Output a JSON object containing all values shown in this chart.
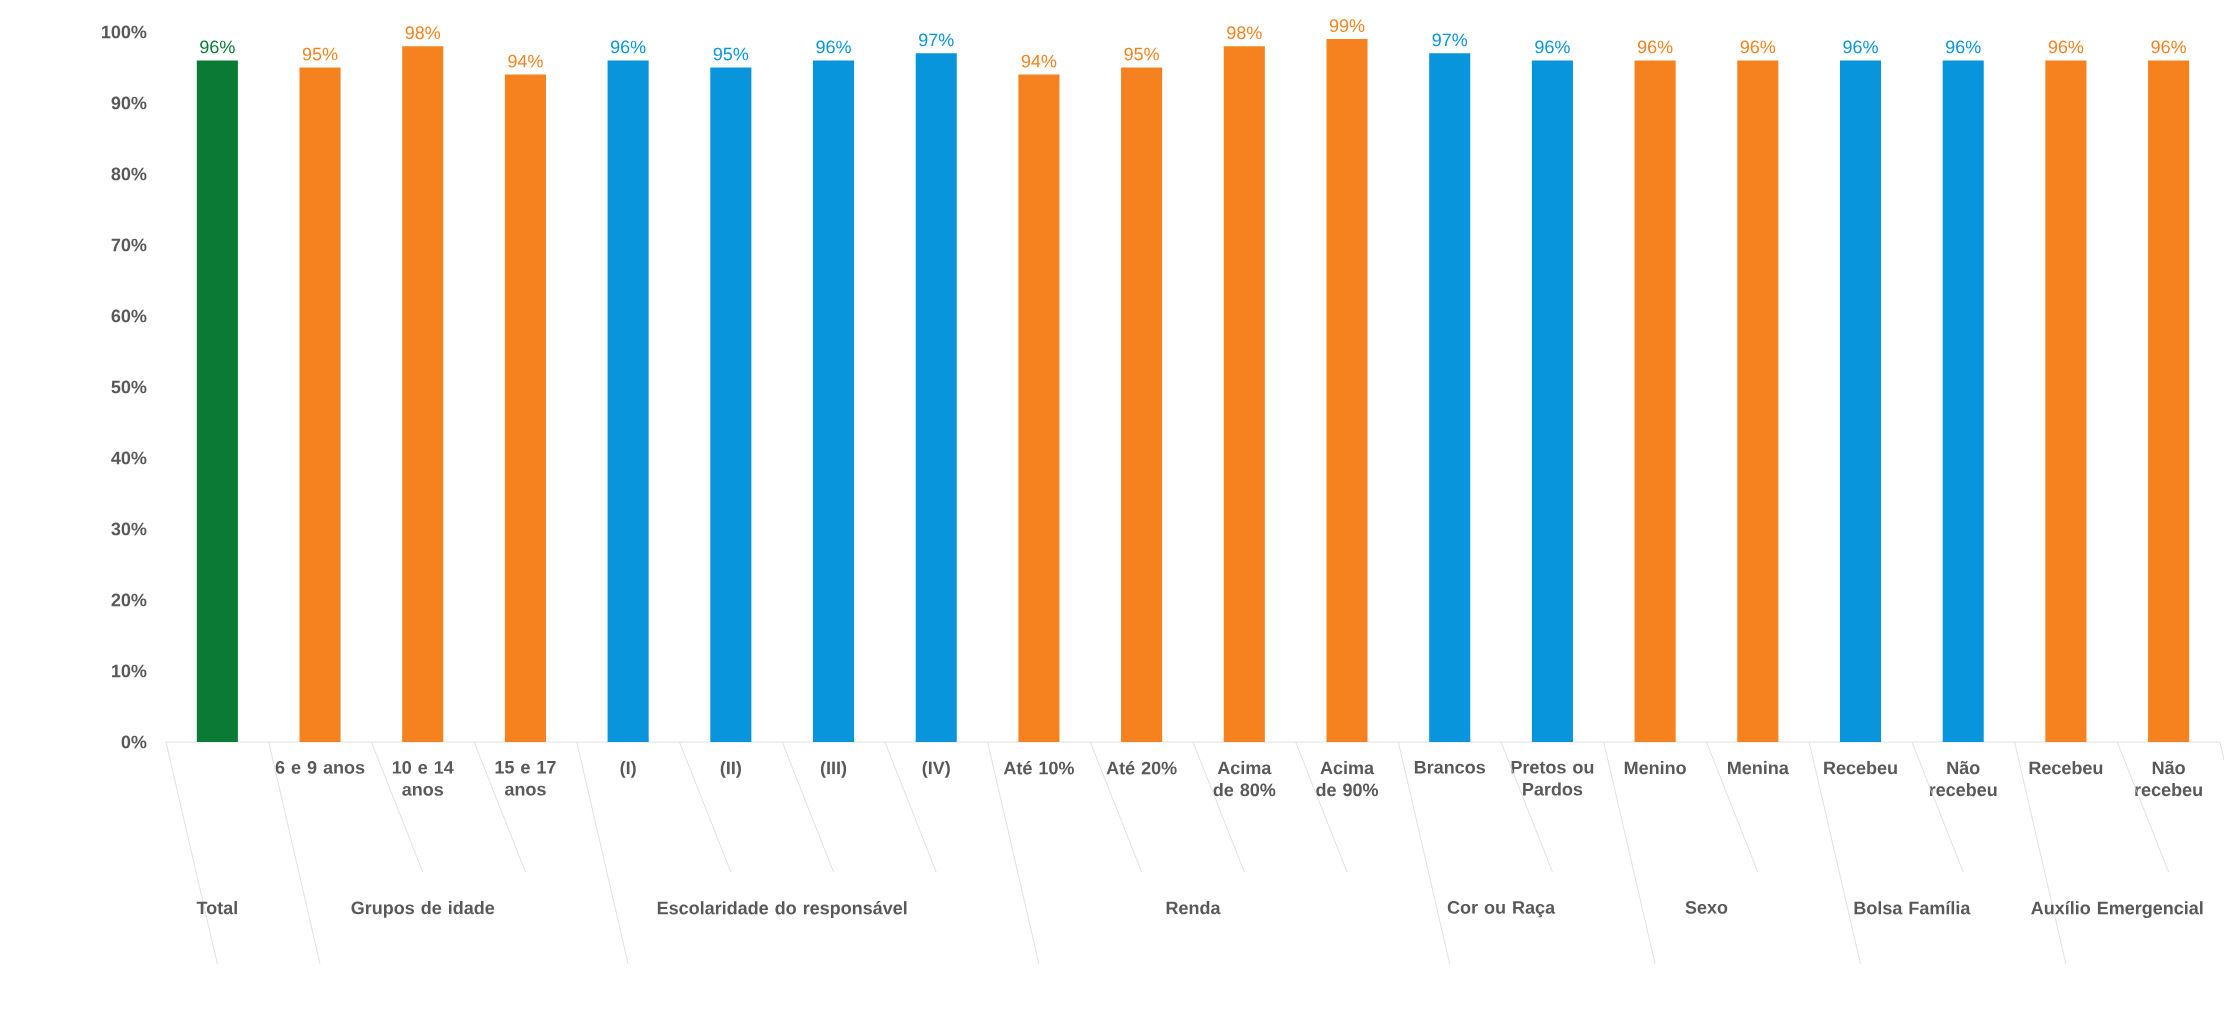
{
  "chart_data": {
    "type": "bar",
    "categories": [
      null,
      "6 e 9 anos",
      "10 e 14 anos",
      "15 e 17 anos",
      "(I)",
      "(II)",
      "(III)",
      "(IV)",
      "Até 10%",
      "Até 20%",
      "Acima de 80%",
      "Acima de 90%",
      "Brancos",
      "Pretos ou Pardos",
      "Menino",
      "Menina",
      "Recebeu",
      "Não recebeu",
      "Recebeu",
      "Não recebeu"
    ],
    "values": [
      96,
      95,
      98,
      94,
      96,
      95,
      96,
      97,
      94,
      95,
      98,
      99,
      97,
      96,
      96,
      96,
      96,
      96,
      96,
      96
    ],
    "value_labels": [
      "96%",
      "95%",
      "98%",
      "94%",
      "96%",
      "95%",
      "96%",
      "97%",
      "94%",
      "95%",
      "98%",
      "99%",
      "97%",
      "96%",
      "96%",
      "96%",
      "96%",
      "96%",
      "96%",
      "96%"
    ],
    "colors": [
      "#0b7a34",
      "#f5821f",
      "#f5821f",
      "#f5821f",
      "#0995dc",
      "#0995dc",
      "#0995dc",
      "#0995dc",
      "#f5821f",
      "#f5821f",
      "#f5821f",
      "#f5821f",
      "#0995dc",
      "#0995dc",
      "#f5821f",
      "#f5821f",
      "#0995dc",
      "#0995dc",
      "#f5821f",
      "#f5821f"
    ],
    "ylim": [
      0,
      100
    ],
    "yticks": [
      {
        "value": 0,
        "label": "0%"
      },
      {
        "value": 10,
        "label": "10%"
      },
      {
        "value": 20,
        "label": "20%"
      },
      {
        "value": 30,
        "label": "30%"
      },
      {
        "value": 40,
        "label": "40%"
      },
      {
        "value": 50,
        "label": "50%"
      },
      {
        "value": 60,
        "label": "60%"
      },
      {
        "value": 70,
        "label": "70%"
      },
      {
        "value": 80,
        "label": "80%"
      },
      {
        "value": 90,
        "label": "90%"
      },
      {
        "value": 100,
        "label": "100%"
      }
    ],
    "annotations": [
      "Total",
      "Grupos de idade",
      "Escolaridade do responsável",
      "Renda",
      "Cor ou Raça",
      "Sexo",
      "Bolsa Família",
      "Auxílio Emergencial"
    ]
  }
}
